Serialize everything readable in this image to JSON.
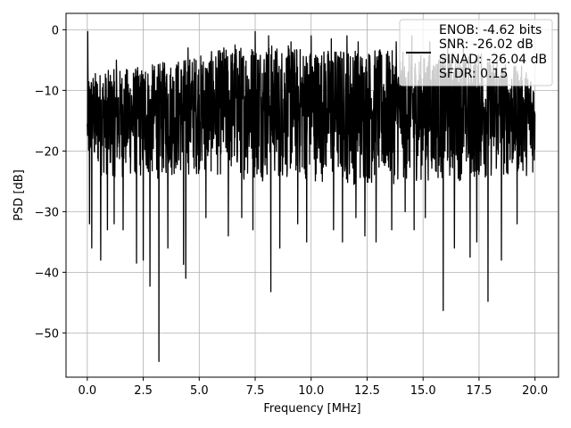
{
  "chart_data": {
    "type": "line",
    "title": "",
    "xlabel": "Frequency [MHz]",
    "ylabel": "PSD [dB]",
    "xlim": [
      -0.95,
      21.05
    ],
    "ylim": [
      -57.3,
      2.7
    ],
    "grid": true,
    "x_ticks": [
      0.0,
      2.5,
      5.0,
      7.5,
      10.0,
      12.5,
      15.0,
      17.5,
      20.0
    ],
    "x_tick_labels": [
      "0.0",
      "2.5",
      "5.0",
      "7.5",
      "10.0",
      "12.5",
      "15.0",
      "17.5",
      "20.0"
    ],
    "y_ticks": [
      0,
      -10,
      -20,
      -30,
      -40,
      -50
    ],
    "y_tick_labels": [
      "0",
      "−10",
      "−20",
      "−30",
      "−40",
      "−50"
    ],
    "legend": {
      "placement": "top-right",
      "entries": [
        "ENOB: -4.62 bits",
        "SNR: -26.02 dB",
        "SINAD: -26.04 dB",
        "SFDR: 0.15"
      ]
    },
    "series": [
      {
        "color": "#000000",
        "noise_floor_db": -15,
        "band_upper_db": [
          [
            0,
            -7
          ],
          [
            2.5,
            -6
          ],
          [
            5,
            -4
          ],
          [
            7.5,
            -2
          ],
          [
            10,
            -3
          ],
          [
            12.5,
            -3
          ],
          [
            15,
            -4
          ],
          [
            17.5,
            -4
          ],
          [
            20,
            -7
          ]
        ],
        "band_lower_db": [
          [
            0,
            -24
          ],
          [
            2.5,
            -25
          ],
          [
            5,
            -24
          ],
          [
            7.5,
            -25
          ],
          [
            10,
            -25
          ],
          [
            12.5,
            -26
          ],
          [
            15,
            -25
          ],
          [
            17.5,
            -25
          ],
          [
            20,
            -24
          ]
        ],
        "spikes_up": [
          [
            0.02,
            -0.3
          ],
          [
            1.3,
            -5
          ],
          [
            2.6,
            -7
          ],
          [
            3.6,
            -3.5
          ],
          [
            4.5,
            -3
          ],
          [
            5.3,
            -4
          ],
          [
            6.1,
            -3
          ],
          [
            6.6,
            -2.5
          ],
          [
            7.5,
            -0.3
          ],
          [
            8.1,
            -1
          ],
          [
            9.1,
            -2
          ],
          [
            10.0,
            -1
          ],
          [
            10.9,
            -1.5
          ],
          [
            11.6,
            -1
          ],
          [
            12.1,
            -2
          ],
          [
            12.9,
            -1.5
          ],
          [
            13.8,
            -2
          ],
          [
            14.5,
            -1
          ],
          [
            15.3,
            -2
          ],
          [
            16.1,
            -3
          ],
          [
            16.8,
            -2
          ],
          [
            17.6,
            -4
          ],
          [
            18.3,
            -5
          ],
          [
            19.4,
            -6
          ]
        ],
        "spikes_down": [
          [
            0.1,
            -32
          ],
          [
            0.2,
            -36
          ],
          [
            0.6,
            -38
          ],
          [
            0.9,
            -33
          ],
          [
            1.2,
            -32
          ],
          [
            1.6,
            -33
          ],
          [
            2.2,
            -38.5
          ],
          [
            2.5,
            -38
          ],
          [
            2.8,
            -42.3
          ],
          [
            3.2,
            -54.7
          ],
          [
            3.6,
            -36
          ],
          [
            4.3,
            -38.7
          ],
          [
            4.4,
            -41
          ],
          [
            5.3,
            -31
          ],
          [
            6.3,
            -34
          ],
          [
            6.9,
            -31
          ],
          [
            7.4,
            -33
          ],
          [
            8.2,
            -43.2
          ],
          [
            8.6,
            -36
          ],
          [
            9.4,
            -32
          ],
          [
            9.8,
            -35
          ],
          [
            11.0,
            -33
          ],
          [
            11.4,
            -35
          ],
          [
            12.0,
            -31
          ],
          [
            12.4,
            -34
          ],
          [
            12.9,
            -35
          ],
          [
            13.6,
            -33
          ],
          [
            14.2,
            -30
          ],
          [
            14.6,
            -33
          ],
          [
            15.1,
            -31
          ],
          [
            15.9,
            -46.3
          ],
          [
            16.4,
            -36
          ],
          [
            17.1,
            -37.5
          ],
          [
            17.4,
            -35
          ],
          [
            17.9,
            -44.8
          ],
          [
            18.5,
            -38
          ],
          [
            19.2,
            -32
          ]
        ]
      }
    ]
  }
}
